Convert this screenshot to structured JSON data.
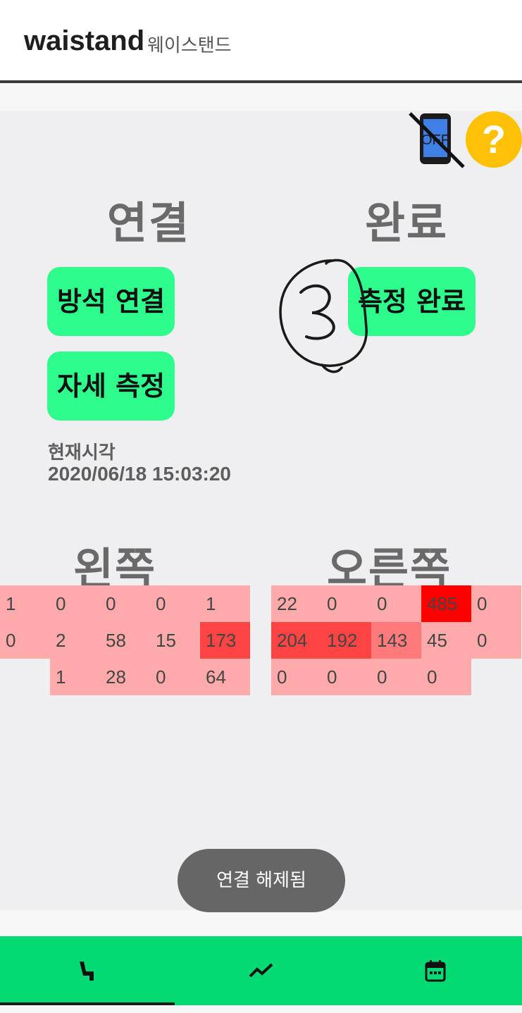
{
  "app": {
    "title": "waistand",
    "subtitle": "웨이스탠드"
  },
  "status": {
    "phone_icon_text": "OFF",
    "help_label": "?"
  },
  "connect_section": {
    "title": "연결",
    "pair_button": "방석 연결",
    "measure_button": "자세 측정",
    "time_label": "현재시각",
    "time_value": "2020/06/18 15:03:20"
  },
  "complete_section": {
    "title": "완료",
    "complete_button": "측정 완료"
  },
  "left_panel": {
    "title": "왼쪽",
    "rows": [
      [
        "1",
        "0",
        "0",
        "0",
        "1"
      ],
      [
        "0",
        "2",
        "58",
        "15",
        "173"
      ],
      [
        "",
        "1",
        "28",
        "0",
        "64"
      ]
    ]
  },
  "right_panel": {
    "title": "오른쪽",
    "rows": [
      [
        "22",
        "0",
        "0",
        "485",
        "0"
      ],
      [
        "204",
        "192",
        "143",
        "45",
        "0"
      ],
      [
        "0",
        "0",
        "0",
        "0",
        ""
      ]
    ]
  },
  "heat_colors": {
    "low": "#ffaaaa",
    "mid": "#ff7b7b",
    "high": "#ff4444",
    "max": "#ff0000"
  },
  "toast": {
    "message": "연결 해제됨"
  },
  "bottom_nav": {
    "items": [
      {
        "icon": "seat-icon",
        "selected": true
      },
      {
        "icon": "chart-line-icon",
        "selected": false
      },
      {
        "icon": "calendar-icon",
        "selected": false
      }
    ]
  }
}
